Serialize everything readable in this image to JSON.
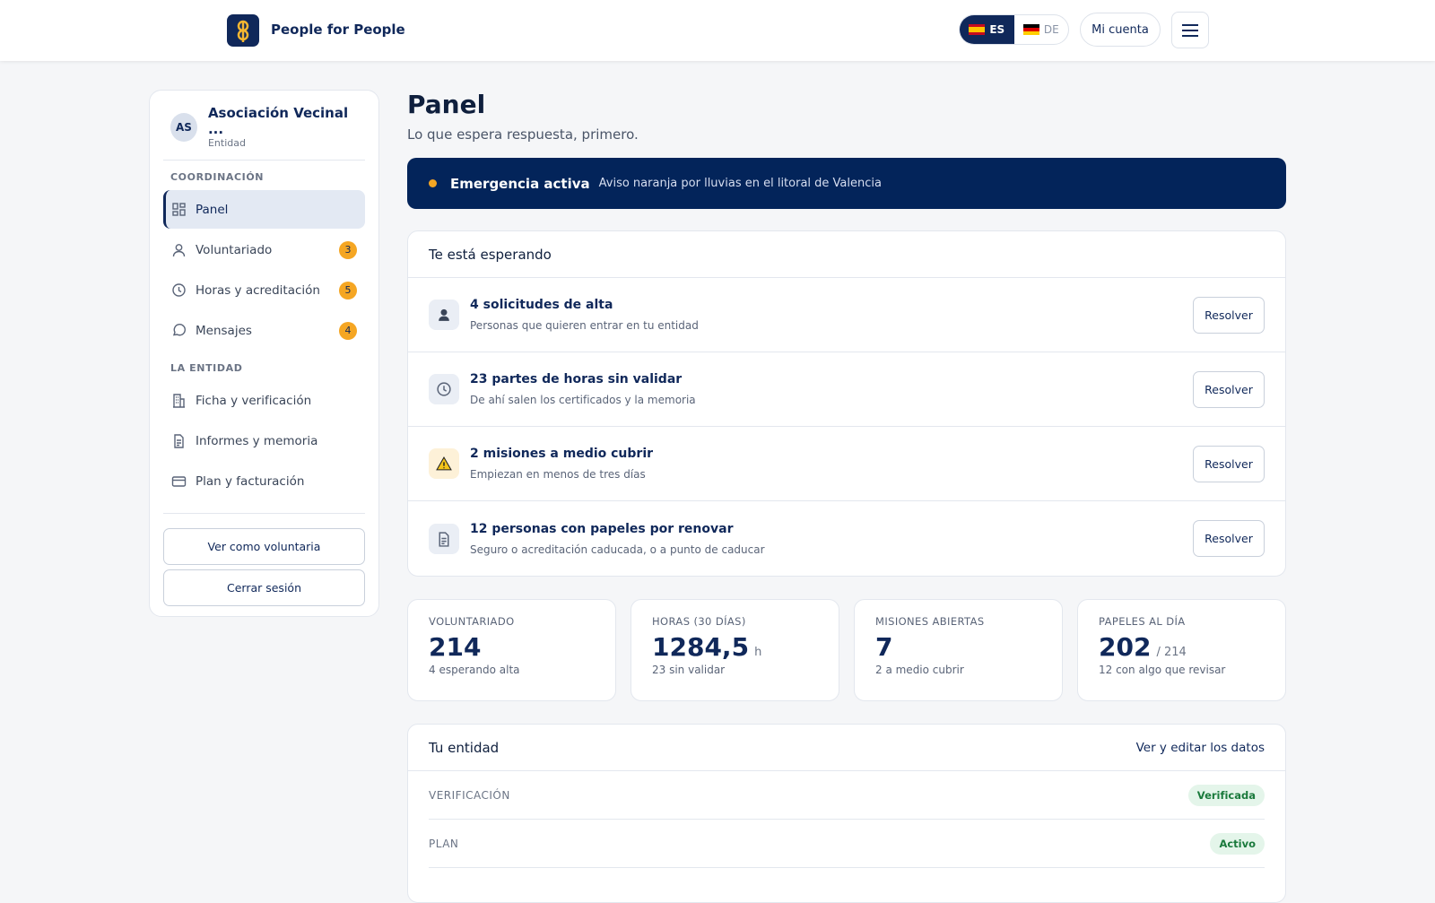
{
  "header": {
    "brand": "People for People",
    "languages": [
      "ES",
      "DE"
    ],
    "account": "Mi cuenta"
  },
  "sidebar": {
    "avatar": "AS",
    "entity_name": "Asociación Vecinal ...",
    "entity_role": "Entidad",
    "sections": [
      {
        "title": "COORDINACIÓN",
        "items": [
          {
            "label": "Panel",
            "icon": "grid",
            "active": true
          },
          {
            "label": "Voluntariado",
            "icon": "user",
            "badge": 3
          },
          {
            "label": "Horas y acreditación",
            "icon": "clock",
            "badge": 5
          },
          {
            "label": "Mensajes",
            "icon": "chat",
            "badge": 4
          }
        ]
      },
      {
        "title": "LA ENTIDAD",
        "items": [
          {
            "label": "Ficha y verificación",
            "icon": "building"
          },
          {
            "label": "Informes y memoria",
            "icon": "doc"
          },
          {
            "label": "Plan y facturación",
            "icon": "card"
          }
        ]
      }
    ],
    "buttons": [
      "Ver como voluntaria",
      "Cerrar sesión"
    ]
  },
  "main": {
    "title": "Panel",
    "subtitle": "Lo que espera respuesta, primero.",
    "alert": {
      "title": "Emergencia activa",
      "text": "Aviso naranja por lluvias en el litoral de Valencia"
    },
    "waiting": {
      "title": "Te está esperando",
      "items": [
        {
          "title": "4 solicitudes de alta",
          "description": "Personas que quieren entrar en tu entidad",
          "action": "Resolver",
          "icon": "person"
        },
        {
          "title": "23 partes de horas sin validar",
          "description": "De ahí salen los certificados y la memoria",
          "action": "Resolver",
          "icon": "clock"
        },
        {
          "title": "2 misiones a medio cubrir",
          "description": "Empiezan en menos de tres días",
          "action": "Resolver",
          "icon": "warn"
        },
        {
          "title": "12 personas con papeles por renovar",
          "description": "Seguro o acreditación caducada, o a punto de caducar",
          "action": "Resolver",
          "icon": "doc"
        }
      ]
    },
    "stats": [
      {
        "label": "VOLUNTARIADO",
        "value": "214",
        "note": "4 esperando alta"
      },
      {
        "label": "HORAS (30 DÍAS)",
        "value": "1284,5",
        "unit": "h",
        "note": "23 sin validar"
      },
      {
        "label": "MISIONES ABIERTAS",
        "value": "7",
        "note": "2 a medio cubrir"
      },
      {
        "label": "PAPELES AL DÍA",
        "value": "202",
        "unit": "/ 214",
        "note": "12 con algo que revisar"
      }
    ],
    "entity": {
      "title": "Tu entidad",
      "link": "Ver y editar los datos",
      "rows": [
        {
          "label": "VERIFICACIÓN",
          "status": "Verificada"
        },
        {
          "label": "PLAN",
          "status": "Activo"
        }
      ]
    }
  }
}
